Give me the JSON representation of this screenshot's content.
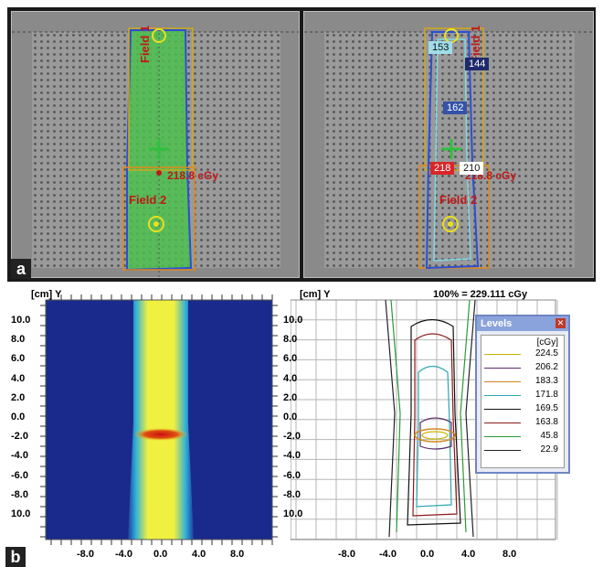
{
  "panel_labels": {
    "a": "a",
    "b": "b"
  },
  "panel_a_left": {
    "field1": "Field 1",
    "field2": "Field 2",
    "dose": "218.8 cGy"
  },
  "panel_a_right": {
    "field1": "Field 1",
    "field2": "Field 2",
    "dose": "218.8 cGy",
    "tags": [
      {
        "value": "153",
        "bg": "#9fdde8",
        "fg": "#111111"
      },
      {
        "value": "144",
        "bg": "#1f2a6b",
        "fg": "#ffffff"
      },
      {
        "value": "162",
        "bg": "#3452a8",
        "fg": "#ffffff"
      },
      {
        "value": "210",
        "bg": "#ffffff",
        "fg": "#111111"
      },
      {
        "value": "218",
        "bg": "#d8262a",
        "fg": "#ffffff"
      }
    ]
  },
  "plot_left": {
    "unit_label": "[cm] Y",
    "y_ticks": [
      "10.0",
      "8.0",
      "6.0",
      "4.0",
      "2.0",
      "0.0",
      "-2.0",
      "-4.0",
      "-6.0",
      "-8.0",
      "10.0"
    ],
    "x_ticks": [
      "-8.0",
      "-4.0",
      "0.0",
      "4.0",
      "8.0"
    ]
  },
  "plot_right": {
    "unit_label": "[cm] Y",
    "norm_label": "100% = 229.111 cGy",
    "y_ticks": [
      "10.0",
      "8.0",
      "6.0",
      "4.0",
      "2.0",
      "0.0",
      "-2.0",
      "-4.0",
      "-6.0",
      "-8.0",
      "10.0"
    ],
    "x_ticks": [
      "-8.0",
      "-4.0",
      "0.0",
      "4.0",
      "8.0"
    ]
  },
  "levels": {
    "title": "Levels",
    "close": "✕",
    "unit": "[cGy]",
    "items": [
      {
        "value": "224.5",
        "color": "#c8b400"
      },
      {
        "value": "206.2",
        "color": "#5a2a6a"
      },
      {
        "value": "183.3",
        "color": "#d08a20"
      },
      {
        "value": "171.8",
        "color": "#2aa8b0"
      },
      {
        "value": "169.5",
        "color": "#111111"
      },
      {
        "value": "163.8",
        "color": "#8b1a1a"
      },
      {
        "value": "45.8",
        "color": "#2a9a3a"
      },
      {
        "value": "22.9",
        "color": "#222222"
      }
    ]
  }
}
